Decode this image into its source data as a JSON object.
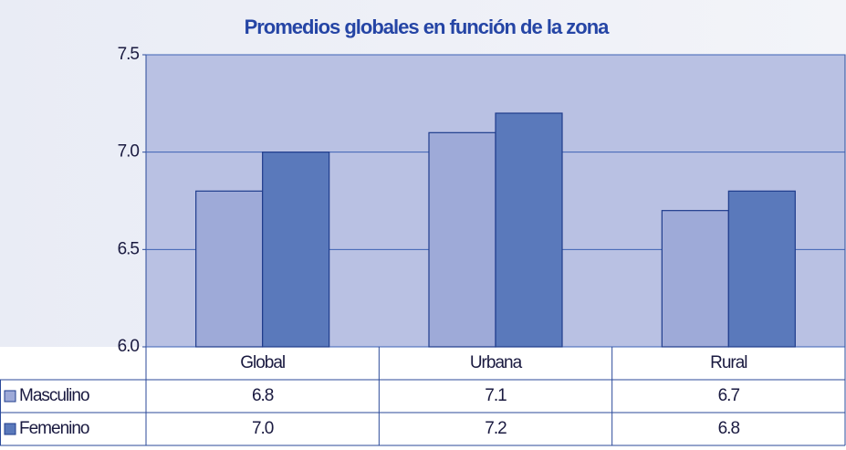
{
  "chart_data": {
    "type": "bar",
    "title": "Promedios globales en función de la zona",
    "categories": [
      "Global",
      "Urbana",
      "Rural"
    ],
    "series": [
      {
        "name": "Masculino",
        "color": "#9eaad8",
        "values": [
          6.8,
          7.1,
          6.7
        ],
        "value_labels": [
          "6.8",
          "7.1",
          "6.7"
        ]
      },
      {
        "name": "Femenino",
        "color": "#5a79bb",
        "values": [
          7.0,
          7.2,
          6.8
        ],
        "value_labels": [
          "7.0",
          "7.2",
          "6.8"
        ]
      }
    ],
    "ylim": [
      6.0,
      7.5
    ],
    "yticks": [
      {
        "value": 6.0,
        "label": "6.0"
      },
      6.5,
      {
        "value": 7.0,
        "label": "7.0"
      },
      7.5
    ],
    "grid": true,
    "plot_color": "#b9c1e3"
  }
}
